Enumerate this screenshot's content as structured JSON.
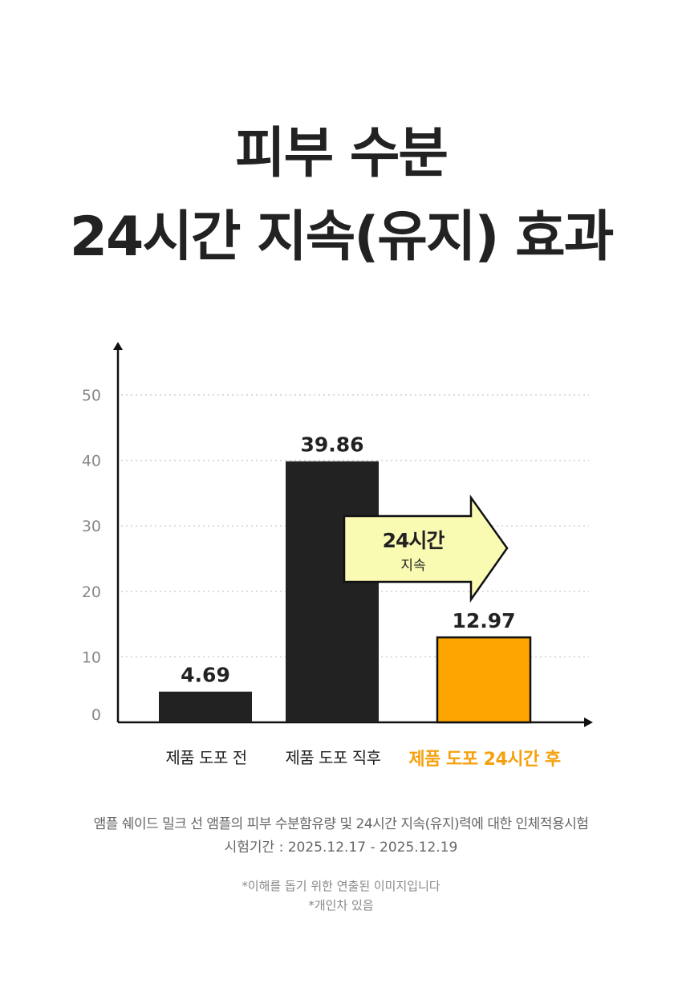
{
  "title": {
    "line1": "피부 수분",
    "line2": "24시간 지속(유지) 효과"
  },
  "chart_data": {
    "type": "bar",
    "categories": [
      "제품 도포 전",
      "제품 도포 직후",
      "제품 도포 24시간 후"
    ],
    "values": [
      4.69,
      39.86,
      12.97
    ],
    "value_labels": [
      "4.69",
      "39.86",
      "12.97"
    ],
    "ylim": [
      0,
      55
    ],
    "yticks": [
      0,
      10,
      20,
      30,
      40,
      50
    ],
    "grid": true,
    "bar_colors": [
      "#222222",
      "#222222",
      "#FFA500"
    ],
    "highlight_category": "제품 도포 24시간 후",
    "annotation": {
      "line1": "24시간",
      "line2": "지속"
    }
  },
  "colors": {
    "accent": "#F5A10F",
    "bar_dark": "#222222",
    "bar_highlight": "#FFA500",
    "arrow_fill": "#FAFBB3"
  },
  "footnote": {
    "line1": "앰플 쉐이드 밀크 선 앰플의 피부 수분함유량 및 24시간 지속(유지)력에 대한 인체적용시험",
    "line2": "시험기간 : 2025.12.17 - 2025.12.19",
    "note1": "*이해를 돕기 위한 연출된 이미지입니다",
    "note2": "*개인차 있음"
  }
}
